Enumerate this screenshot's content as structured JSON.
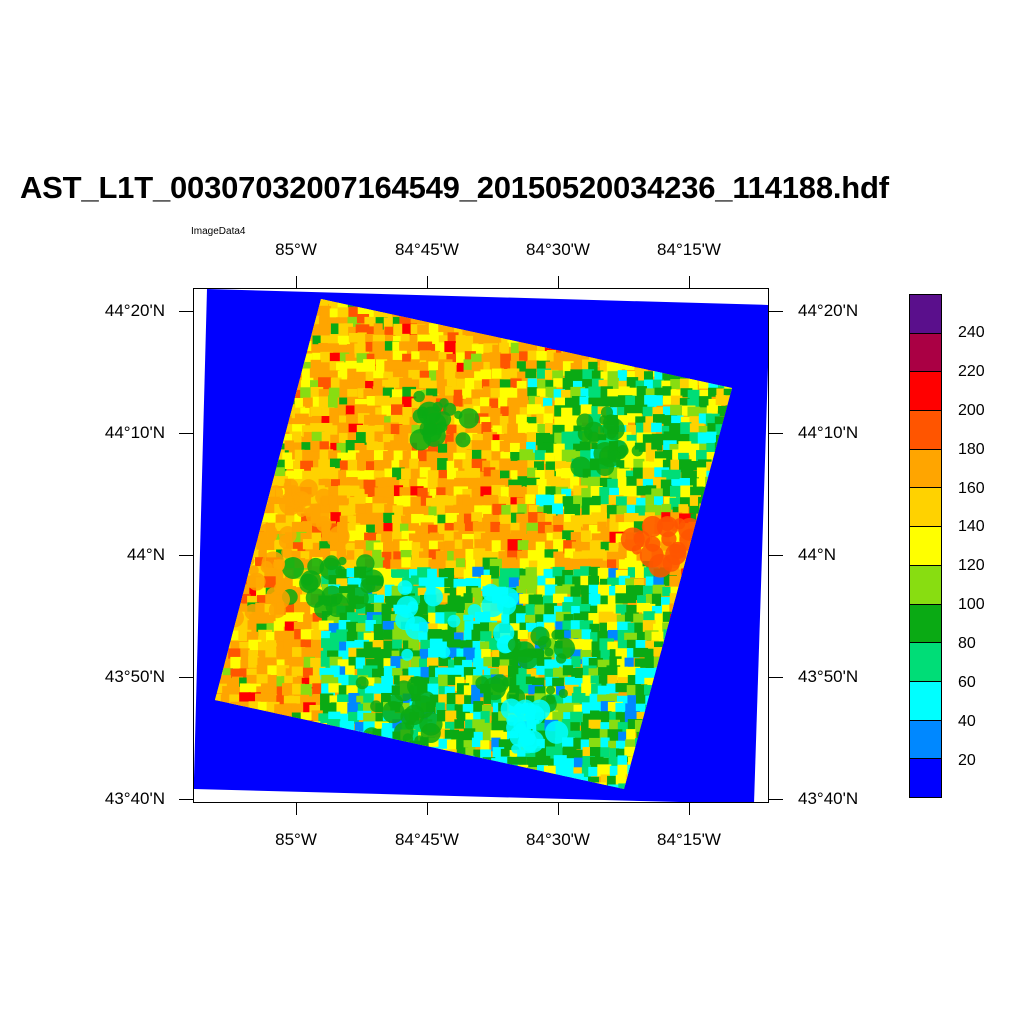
{
  "title": "AST_L1T_00307032007164549_20150520034236_114188.hdf",
  "subtitle": "ImageData4",
  "map": {
    "lon_ticks": [
      "85°W",
      "84°45'W",
      "84°30'W",
      "84°15'W"
    ],
    "lat_ticks": [
      "44°20'N",
      "44°10'N",
      "44°N",
      "43°50'N",
      "43°40'N"
    ]
  },
  "colorbar": {
    "labels": [
      "240",
      "220",
      "200",
      "180",
      "160",
      "140",
      "120",
      "100",
      "80",
      "60",
      "40",
      "20"
    ],
    "colors_top_to_bottom": [
      "#5a0f8c",
      "#aa0044",
      "#ff0000",
      "#ff5500",
      "#ffa500",
      "#ffd200",
      "#ffff00",
      "#88dd11",
      "#0aaa14",
      "#00dd77",
      "#00ffff",
      "#0088ff",
      "#0000ff"
    ]
  },
  "image": {
    "fill_color": "#0000ff",
    "palette": [
      "#0088ff",
      "#00ffff",
      "#00dd77",
      "#0aaa14",
      "#88dd11",
      "#ffff00",
      "#ffd200",
      "#ffa500",
      "#ff5500",
      "#ff0000"
    ]
  }
}
